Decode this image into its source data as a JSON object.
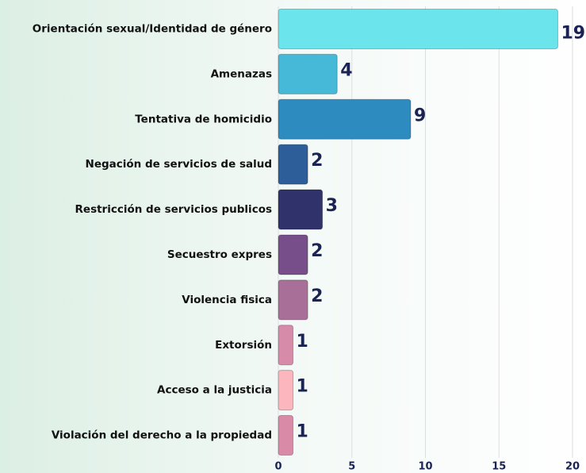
{
  "chart_data": {
    "type": "barh",
    "categories": [
      "Orientación sexual/Identidad de género",
      "Amenazas",
      "Tentativa de homicidio",
      "Negación de servicios de salud",
      "Restricción de servicios publicos",
      "Secuestro expres",
      "Violencia fisica",
      "Extorsión",
      "Acceso a la justicia",
      "Violación del derecho a la propiedad"
    ],
    "values": [
      19,
      4,
      9,
      2,
      3,
      2,
      2,
      1,
      1,
      1
    ],
    "colors": [
      "#6be4eb",
      "#45b9d7",
      "#2e8bc0",
      "#2d5e9a",
      "#30336b",
      "#774d8a",
      "#a86f98",
      "#d68ca8",
      "#fcb7be",
      "#d98aa7"
    ],
    "xlim": [
      0,
      20
    ],
    "xticks": [
      0,
      5,
      10,
      15,
      20
    ],
    "grid": true
  }
}
